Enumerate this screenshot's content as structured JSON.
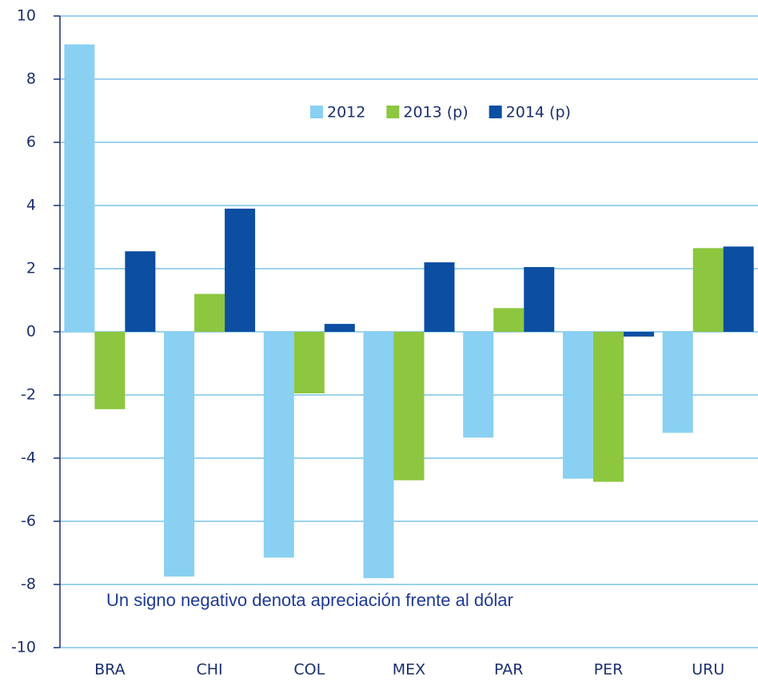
{
  "chart_data": {
    "type": "bar",
    "annotation": "Un signo negativo denota apreciación frente al dólar",
    "categories": [
      "BRA",
      "CHI",
      "COL",
      "MEX",
      "PAR",
      "PER",
      "URU"
    ],
    "series": [
      {
        "name": "2012",
        "color": "#89d0f2",
        "values": [
          9.1,
          -7.75,
          -7.15,
          -7.8,
          -3.35,
          -4.65,
          -3.2
        ]
      },
      {
        "name": "2013 (p)",
        "color": "#8dc63f",
        "values": [
          -2.45,
          1.2,
          -1.95,
          -4.7,
          0.75,
          -4.75,
          2.65
        ]
      },
      {
        "name": "2014 (p)",
        "color": "#0b4ea2",
        "values": [
          2.55,
          3.9,
          0.25,
          2.2,
          2.05,
          -0.15,
          2.7
        ]
      }
    ],
    "ylim": [
      -10,
      10
    ],
    "yticks": [
      -10,
      -8,
      -6,
      -4,
      -2,
      0,
      2,
      4,
      6,
      8,
      10
    ],
    "grid": true
  }
}
